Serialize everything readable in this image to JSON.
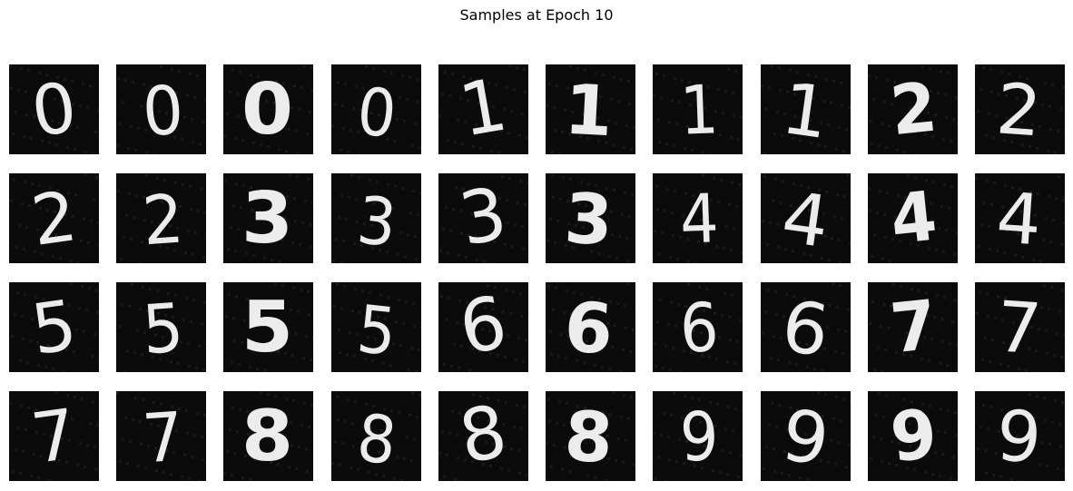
{
  "figure": {
    "title": "Samples at Epoch 10"
  },
  "samples": [
    [
      "0",
      "0",
      "0",
      "0",
      "1",
      "1",
      "1",
      "1",
      "2",
      "2"
    ],
    [
      "2",
      "2",
      "3",
      "3",
      "3",
      "3",
      "4",
      "4",
      "4",
      "4"
    ],
    [
      "5",
      "5",
      "5",
      "5",
      "6",
      "6",
      "6",
      "6",
      "7",
      "7"
    ],
    [
      "7",
      "7",
      "8",
      "8",
      "8",
      "8",
      "9",
      "9",
      "9",
      "9"
    ]
  ],
  "colors": {
    "background": "#ffffff",
    "tile": "#0b0b0b",
    "digit": "#ececec"
  }
}
